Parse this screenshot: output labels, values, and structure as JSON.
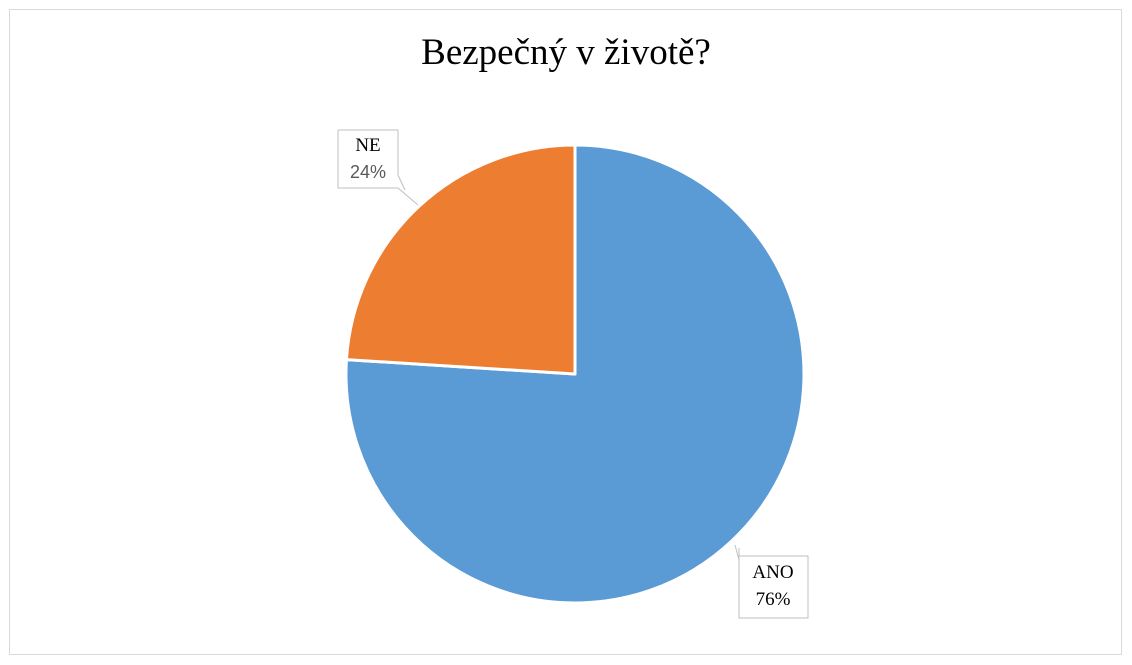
{
  "chart_data": {
    "type": "pie",
    "title": "Bezpečný v životě?",
    "categories": [
      "ANO",
      "NE"
    ],
    "values": [
      76,
      24
    ],
    "value_labels": [
      "76%",
      "24%"
    ],
    "colors": [
      "#5b9bd5",
      "#ed7d31"
    ],
    "legend": "none",
    "start_angle": "12 o'clock, clockwise"
  }
}
